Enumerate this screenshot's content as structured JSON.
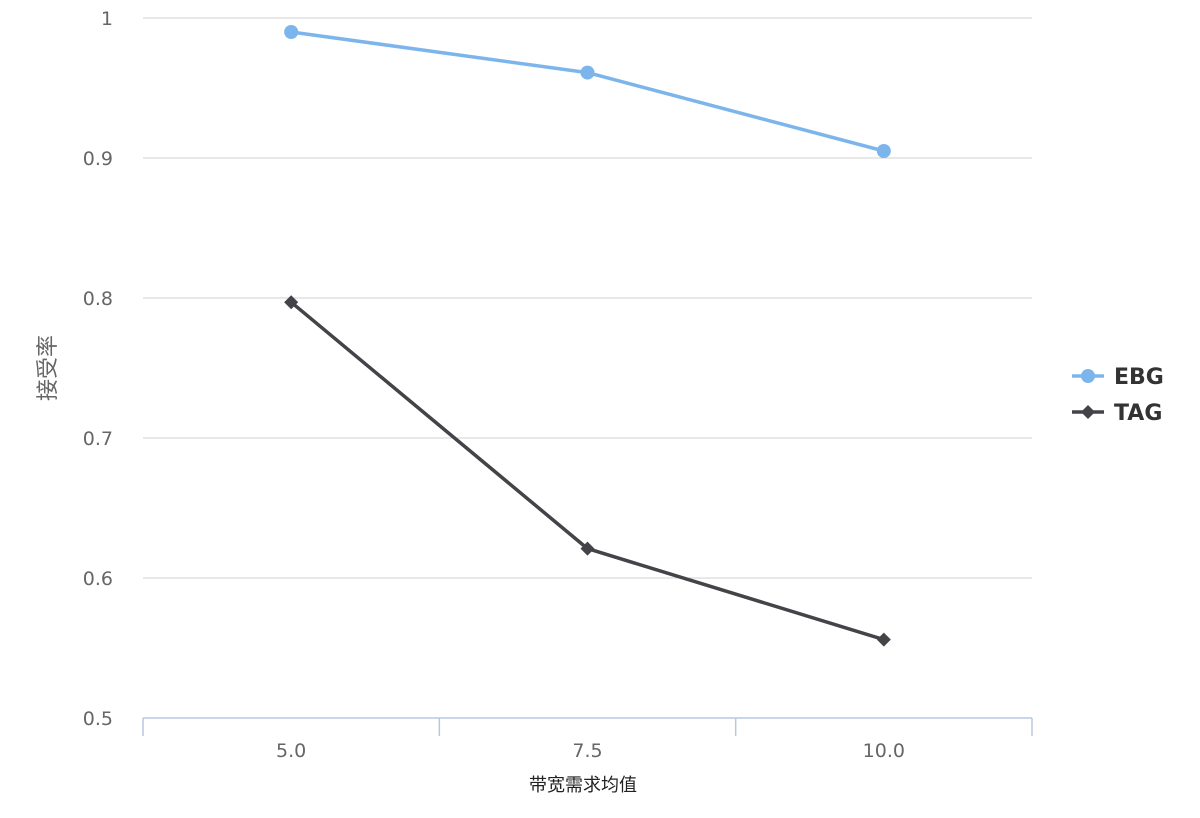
{
  "chart_data": {
    "type": "line",
    "categories": [
      "5.0",
      "7.5",
      "10.0"
    ],
    "series": [
      {
        "name": "EBG",
        "values": [
          0.99,
          0.961,
          0.905
        ],
        "color": "#7cb5ec",
        "marker": "circle"
      },
      {
        "name": "TAG",
        "values": [
          0.797,
          0.621,
          0.556
        ],
        "color": "#434348",
        "marker": "diamond"
      }
    ],
    "xlabel": "带宽需求均值",
    "ylabel": "接受率",
    "ylim": [
      0.5,
      1
    ],
    "yticks": [
      "0.5",
      "0.6",
      "0.7",
      "0.8",
      "0.9",
      "1"
    ],
    "grid": true,
    "legend": "right"
  }
}
